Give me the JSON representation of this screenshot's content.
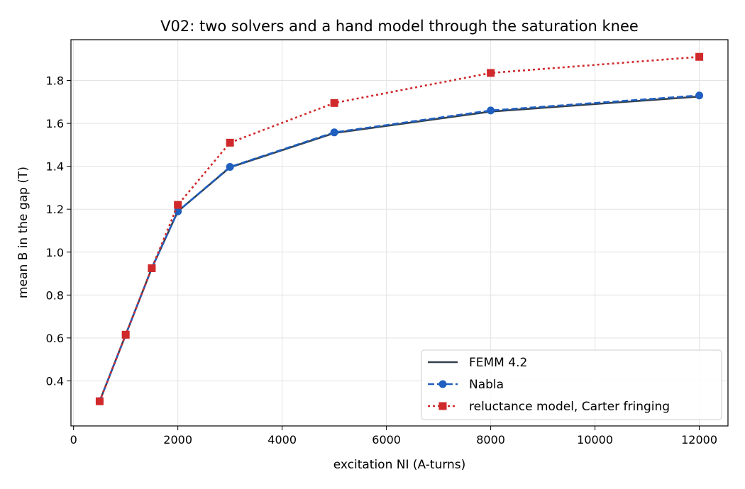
{
  "chart_data": {
    "type": "line",
    "title": "V02: two solvers and a hand model through the saturation knee",
    "xlabel": "excitation NI (A-turns)",
    "ylabel": "mean B in the gap (T)",
    "xlim": [
      -50,
      12550
    ],
    "ylim": [
      0.19,
      1.99
    ],
    "xticks": [
      0,
      2000,
      4000,
      6000,
      8000,
      10000,
      12000
    ],
    "yticks": [
      0.4,
      0.6,
      0.8,
      1.0,
      1.2,
      1.4,
      1.6,
      1.8
    ],
    "xtick_labels": [
      "0",
      "2000",
      "4000",
      "6000",
      "8000",
      "10000",
      "12000"
    ],
    "ytick_labels": [
      "0.4",
      "0.6",
      "0.8",
      "1.0",
      "1.2",
      "1.4",
      "1.6",
      "1.8"
    ],
    "grid": true,
    "legend_position": "lower-right",
    "x": [
      500,
      1000,
      1500,
      2000,
      3000,
      5000,
      8000,
      12000
    ],
    "series": [
      {
        "name": "FEMM 4.2",
        "values": [
          0.305,
          0.615,
          0.925,
          1.19,
          1.395,
          1.555,
          1.655,
          1.725
        ],
        "color": "#333f4b",
        "line_style": "solid",
        "marker": "none"
      },
      {
        "name": "Nabla",
        "values": [
          0.305,
          0.615,
          0.925,
          1.19,
          1.397,
          1.558,
          1.66,
          1.73
        ],
        "color": "#1f5fbf",
        "line_style": "dashed",
        "marker": "circle"
      },
      {
        "name": "reluctance model, Carter fringing",
        "values": [
          0.305,
          0.615,
          0.925,
          1.22,
          1.51,
          1.695,
          1.835,
          1.91
        ],
        "color": "#d0292b",
        "line_style": "dotted",
        "marker": "square"
      }
    ]
  }
}
